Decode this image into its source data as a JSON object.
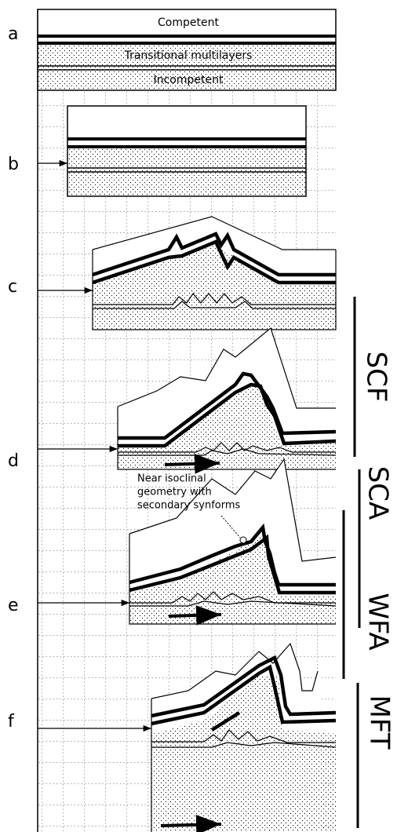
{
  "legend": {
    "competent": "Competent",
    "transitional": "Transitional multilayers",
    "incompetent": "Incompetent"
  },
  "panels": [
    "a",
    "b",
    "c",
    "d",
    "e",
    "f"
  ],
  "annotation": [
    "Near isoclinal",
    "geometry with",
    "secondary synforms"
  ],
  "stages": [
    "SCF",
    "SCA",
    "WFA",
    "MFT"
  ]
}
